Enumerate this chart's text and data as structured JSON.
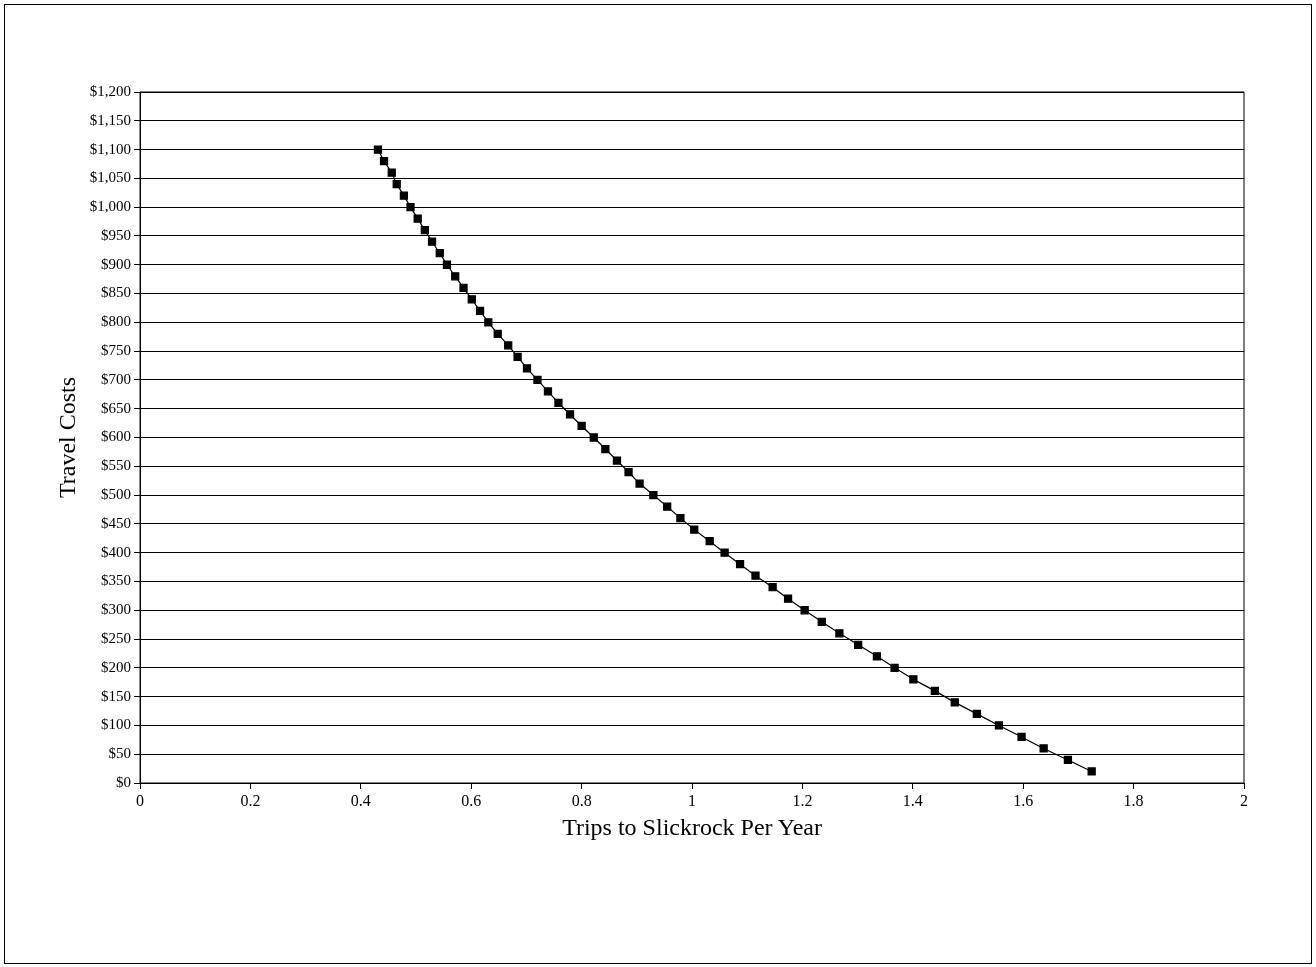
{
  "chart_data": {
    "type": "line",
    "xlabel": "Trips to Slickrock Per Year",
    "ylabel": "Travel Costs",
    "x": [
      0.431,
      0.442,
      0.456,
      0.465,
      0.478,
      0.49,
      0.503,
      0.516,
      0.529,
      0.543,
      0.556,
      0.571,
      0.586,
      0.601,
      0.616,
      0.631,
      0.648,
      0.667,
      0.684,
      0.701,
      0.72,
      0.739,
      0.758,
      0.779,
      0.8,
      0.822,
      0.843,
      0.864,
      0.885,
      0.905,
      0.93,
      0.955,
      0.979,
      1.004,
      1.032,
      1.059,
      1.087,
      1.115,
      1.146,
      1.174,
      1.204,
      1.235,
      1.267,
      1.301,
      1.335,
      1.367,
      1.401,
      1.44,
      1.476,
      1.516,
      1.556,
      1.597,
      1.637,
      1.681,
      1.724
    ],
    "series": [
      {
        "color": "#000000",
        "values": [
          1100,
          1080,
          1060,
          1040,
          1020,
          1000,
          980,
          960,
          940,
          920,
          900,
          880,
          860,
          840,
          820,
          800,
          780,
          760,
          740,
          720,
          700,
          680,
          660,
          640,
          620,
          600,
          580,
          560,
          540,
          520,
          500,
          480,
          460,
          440,
          420,
          400,
          380,
          360,
          340,
          320,
          300,
          280,
          260,
          240,
          220,
          200,
          180,
          160,
          140,
          120,
          100,
          80,
          60,
          40,
          20
        ]
      }
    ],
    "xlim": [
      0,
      2
    ],
    "xticks": [
      0,
      0.2,
      0.4,
      0.6,
      0.8,
      1,
      1.2,
      1.4,
      1.6,
      1.8,
      2
    ],
    "ylim": [
      0,
      1200
    ],
    "yticks": [
      {
        "value": 0,
        "label": "$0"
      },
      {
        "value": 50,
        "label": "$50"
      },
      {
        "value": 100,
        "label": "$100"
      },
      {
        "value": 150,
        "label": "$150"
      },
      {
        "value": 200,
        "label": "$200"
      },
      {
        "value": 250,
        "label": "$250"
      },
      {
        "value": 300,
        "label": "$300"
      },
      {
        "value": 350,
        "label": "$350"
      },
      {
        "value": 400,
        "label": "$400"
      },
      {
        "value": 450,
        "label": "$450"
      },
      {
        "value": 500,
        "label": "$500"
      },
      {
        "value": 550,
        "label": "$550"
      },
      {
        "value": 600,
        "label": "$600"
      },
      {
        "value": 650,
        "label": "$650"
      },
      {
        "value": 700,
        "label": "$700"
      },
      {
        "value": 750,
        "label": "$750"
      },
      {
        "value": 800,
        "label": "$800"
      },
      {
        "value": 850,
        "label": "$850"
      },
      {
        "value": 900,
        "label": "$900"
      },
      {
        "value": 950,
        "label": "$950"
      },
      {
        "value": 1000,
        "label": "$1,000"
      },
      {
        "value": 1050,
        "label": "$1,050"
      },
      {
        "value": 1100,
        "label": "$1,100"
      },
      {
        "value": 1150,
        "label": "$1,150"
      },
      {
        "value": 1200,
        "label": "$1,200"
      }
    ],
    "grid": "y",
    "marker": "square",
    "line_style": "solid"
  }
}
